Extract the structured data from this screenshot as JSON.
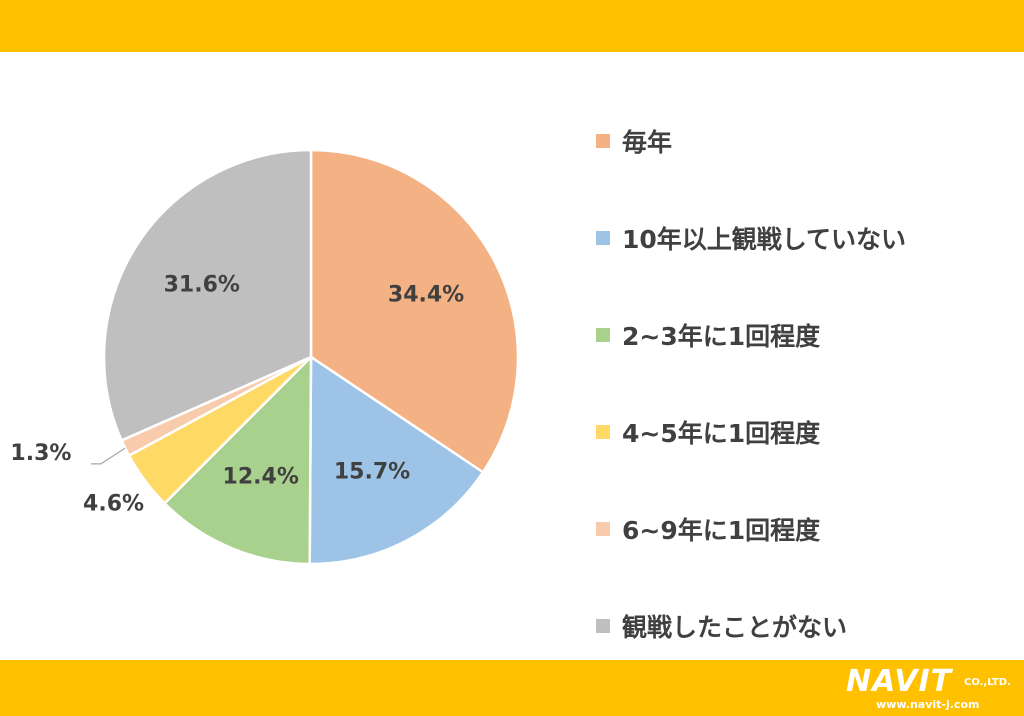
{
  "colors": {
    "band": "#ffc000",
    "label_text": "#404040",
    "slice_stroke": "#ffffff"
  },
  "chart_data": {
    "type": "pie",
    "start_angle_deg": 0,
    "direction": "clockwise",
    "series": [
      {
        "name": "毎年",
        "value": 34.4,
        "label": "34.4%",
        "color": "#f4b183"
      },
      {
        "name": "10年以上観戦していない",
        "value": 15.7,
        "label": "15.7%",
        "color": "#9dc3e6"
      },
      {
        "name": "2~3年に1回程度",
        "value": 12.4,
        "label": "12.4%",
        "color": "#a9d18e"
      },
      {
        "name": "4~5年に1回程度",
        "value": 4.6,
        "label": "4.6%",
        "color": "#ffd966"
      },
      {
        "name": "6~9年に1回程度",
        "value": 1.3,
        "label": "1.3%",
        "color": "#f8cbad"
      },
      {
        "name": "観戦したことがない",
        "value": 31.6,
        "label": "31.6%",
        "color": "#bfbfbf"
      }
    ],
    "legend_position": "right"
  },
  "logo": {
    "name": "NAVIT",
    "suffix": "CO.,LTD.",
    "url": "www.navit-j.com"
  }
}
